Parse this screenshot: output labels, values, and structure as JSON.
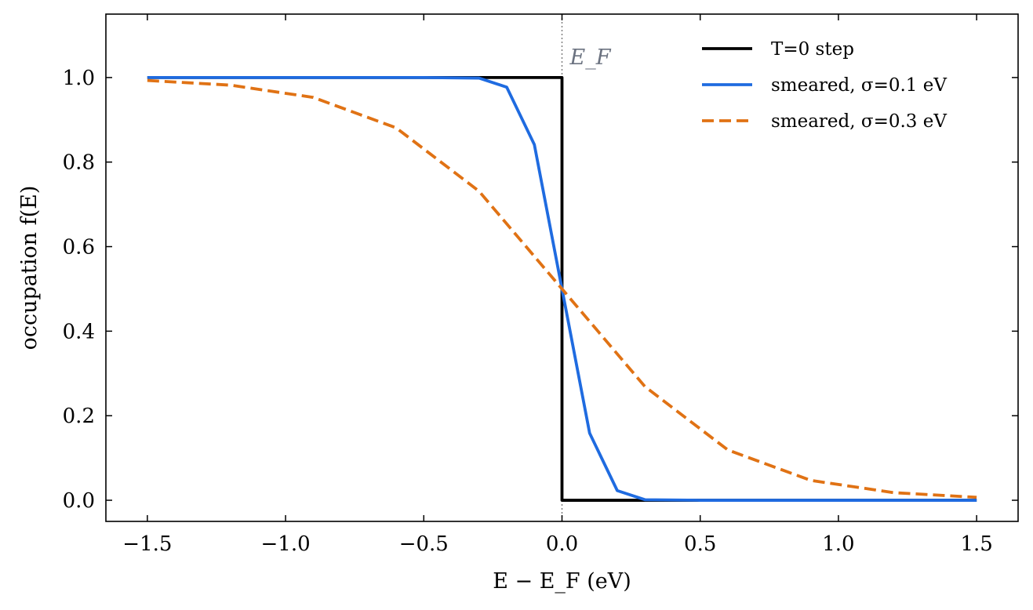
{
  "chart_data": {
    "type": "line",
    "xlabel": "E − E_F (eV)",
    "ylabel": "occupation f(E)",
    "xlim": [
      -1.65,
      1.65
    ],
    "ylim": [
      -0.05,
      1.15
    ],
    "xticks": [
      -1.5,
      -1.0,
      -0.5,
      0.0,
      0.5,
      1.0,
      1.5
    ],
    "xtick_labels": [
      "−1.5",
      "−1.0",
      "−0.5",
      "0.0",
      "0.5",
      "1.0",
      "1.5"
    ],
    "yticks": [
      0.0,
      0.2,
      0.4,
      0.6,
      0.8,
      1.0
    ],
    "ytick_labels": [
      "0.0",
      "0.2",
      "0.4",
      "0.6",
      "0.8",
      "1.0"
    ],
    "grid": false,
    "legend_position": "top-right",
    "vline": {
      "x": 0.0,
      "label": "E_F",
      "color": "#808080",
      "style": "dotted"
    },
    "series": [
      {
        "name": "T=0 step",
        "color": "#000000",
        "style": "solid",
        "x": [
          -1.5,
          0.0,
          0.0,
          1.5
        ],
        "y": [
          1.0,
          1.0,
          0.0,
          0.0
        ]
      },
      {
        "name": "smeared, σ=0.1 eV",
        "color": "#1f6be0",
        "style": "solid",
        "x": [
          -1.5,
          -0.5,
          -0.3,
          -0.2,
          -0.1,
          0.0,
          0.1,
          0.2,
          0.3,
          0.5,
          0.7,
          1.0,
          1.5
        ],
        "y": [
          1.0,
          1.0,
          0.9987,
          0.9772,
          0.8413,
          0.5,
          0.1587,
          0.0228,
          0.0013,
          0.0,
          0.0,
          0.0,
          0.0
        ]
      },
      {
        "name": "smeared, σ=0.3 eV",
        "color": "#e07214",
        "style": "dashed",
        "x": [
          -1.5,
          -1.2,
          -0.9,
          -0.6,
          -0.3,
          0.0,
          0.3,
          0.6,
          0.9,
          1.2,
          1.5
        ],
        "y": [
          0.993,
          0.982,
          0.953,
          0.881,
          0.731,
          0.5,
          0.269,
          0.119,
          0.047,
          0.018,
          0.007
        ]
      }
    ]
  }
}
